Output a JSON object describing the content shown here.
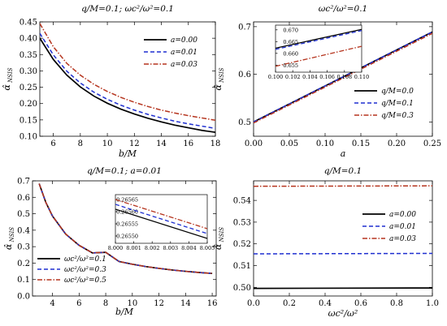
{
  "colors": {
    "black": "#000000",
    "blue": "#1f2fd0",
    "red": "#b5341e"
  },
  "chart_data": [
    {
      "type": "line",
      "title": "q/M=0.1;     ωc²/ω²=0.1",
      "xlabel": "b/M",
      "ylabel": "α̂ NSIS",
      "xlim": [
        5,
        18
      ],
      "ylim": [
        0.1,
        0.45
      ],
      "xticks": [
        6,
        8,
        10,
        12,
        14,
        16,
        18
      ],
      "yticks": [
        0.1,
        0.15,
        0.2,
        0.25,
        0.3,
        0.35,
        0.4,
        0.45
      ],
      "legend_position": "top-right",
      "series": [
        {
          "name": "a=0.00",
          "color": "#000000",
          "dash": "solid",
          "x": [
            5,
            6,
            7,
            8,
            9,
            10,
            11,
            12,
            13,
            14,
            15,
            16,
            17,
            18
          ],
          "values": [
            0.4,
            0.335,
            0.287,
            0.251,
            0.223,
            0.201,
            0.183,
            0.168,
            0.155,
            0.144,
            0.134,
            0.126,
            0.118,
            0.112
          ]
        },
        {
          "name": "a=0.01",
          "color": "#1f2fd0",
          "dash": "dashed",
          "x": [
            5,
            6,
            7,
            8,
            9,
            10,
            11,
            12,
            13,
            14,
            15,
            16,
            17,
            18
          ],
          "values": [
            0.415,
            0.349,
            0.299,
            0.263,
            0.235,
            0.213,
            0.195,
            0.18,
            0.167,
            0.156,
            0.146,
            0.138,
            0.131,
            0.124
          ]
        },
        {
          "name": "a=0.03",
          "color": "#b5341e",
          "dash": "dashdot",
          "x": [
            5,
            6,
            7,
            8,
            9,
            10,
            11,
            12,
            13,
            14,
            15,
            16,
            17,
            18
          ],
          "values": [
            0.445,
            0.374,
            0.323,
            0.287,
            0.259,
            0.237,
            0.219,
            0.204,
            0.191,
            0.18,
            0.171,
            0.163,
            0.156,
            0.149
          ]
        }
      ]
    },
    {
      "type": "line",
      "title": "ωc²/ω²=0.1",
      "xlabel": "a",
      "ylabel": "α̂ NSIS",
      "xlim": [
        0,
        0.25
      ],
      "ylim": [
        0.47,
        0.71
      ],
      "xticks": [
        0.0,
        0.05,
        0.1,
        0.15,
        0.2,
        0.25
      ],
      "yticks": [
        0.5,
        0.6,
        0.7
      ],
      "legend_position": "bottom-right",
      "series": [
        {
          "name": "q/M=0.0",
          "color": "#000000",
          "dash": "solid",
          "x": [
            0,
            0.25
          ],
          "values": [
            0.5,
            0.689
          ]
        },
        {
          "name": "q/M=0.1",
          "color": "#1f2fd0",
          "dash": "dashed",
          "x": [
            0,
            0.25
          ],
          "values": [
            0.5,
            0.689
          ]
        },
        {
          "name": "q/M=0.3",
          "color": "#b5341e",
          "dash": "dashdot",
          "x": [
            0,
            0.25
          ],
          "values": [
            0.498,
            0.686
          ]
        }
      ],
      "inset": {
        "xlim": [
          0.1,
          0.11
        ],
        "ylim": [
          0.652,
          0.672
        ],
        "xticks": [
          0.1,
          0.102,
          0.104,
          0.106,
          0.108,
          0.11
        ],
        "xtick_labels": [
          "0.100",
          "0.102",
          "0.104",
          "0.106",
          "0.108",
          "0.110"
        ],
        "yticks": [
          0.655,
          0.66,
          0.665,
          0.67
        ],
        "series": [
          {
            "name": "q/M=0.0",
            "x": [
              0.1,
              0.11
            ],
            "values": [
              0.6622,
              0.6702
            ]
          },
          {
            "name": "q/M=0.1",
            "x": [
              0.1,
              0.11
            ],
            "values": [
              0.6617,
              0.6697
            ]
          },
          {
            "name": "q/M=0.3",
            "x": [
              0.1,
              0.11
            ],
            "values": [
              0.6545,
              0.663
            ]
          }
        ]
      }
    },
    {
      "type": "line",
      "title": "q/M=0.1;   a=0.01",
      "xlabel": "b/M",
      "ylabel": "α̂ NSIS",
      "xlim": [
        2.5,
        16.3
      ],
      "ylim": [
        0.0,
        0.7
      ],
      "xticks": [
        4,
        6,
        8,
        10,
        12,
        14,
        16
      ],
      "yticks": [
        0.0,
        0.1,
        0.2,
        0.3,
        0.4,
        0.5,
        0.6,
        0.7
      ],
      "legend_position": "bottom-left",
      "series": [
        {
          "name": "ωc²/ω²=0.1",
          "color": "#000000",
          "dash": "solid",
          "x": [
            3,
            3.5,
            4,
            5,
            6,
            7,
            8,
            9,
            10,
            11,
            12,
            13,
            14,
            15,
            16
          ],
          "values": [
            0.683,
            0.569,
            0.486,
            0.376,
            0.308,
            0.262,
            0.2655,
            0.21,
            0.193,
            0.179,
            0.168,
            0.158,
            0.15,
            0.143,
            0.137
          ]
        },
        {
          "name": "ωc²/ω²=0.3",
          "color": "#1f2fd0",
          "dash": "dashed",
          "x": [
            3,
            3.5,
            4,
            5,
            6,
            7,
            8,
            9,
            10,
            11,
            12,
            13,
            14,
            15,
            16
          ],
          "values": [
            0.683,
            0.569,
            0.486,
            0.376,
            0.308,
            0.262,
            0.2656,
            0.21,
            0.193,
            0.179,
            0.168,
            0.158,
            0.15,
            0.143,
            0.137
          ]
        },
        {
          "name": "ωc²/ω²=0.5",
          "color": "#b5341e",
          "dash": "dashdot",
          "x": [
            3,
            3.5,
            4,
            5,
            6,
            7,
            8,
            9,
            10,
            11,
            12,
            13,
            14,
            15,
            16
          ],
          "values": [
            0.683,
            0.569,
            0.486,
            0.376,
            0.308,
            0.262,
            0.2657,
            0.21,
            0.193,
            0.179,
            0.168,
            0.158,
            0.15,
            0.143,
            0.137
          ]
        }
      ],
      "inset": {
        "xlim": [
          8.0,
          8.005
        ],
        "ylim": [
          0.26547,
          0.26567
        ],
        "xticks": [
          8.0,
          8.001,
          8.002,
          8.003,
          8.004,
          8.005
        ],
        "xtick_labels": [
          "8.000",
          "8.001",
          "8.002",
          "8.003",
          "8.004",
          "8.005"
        ],
        "yticks": [
          0.2655,
          0.26555,
          0.2656,
          0.26565
        ],
        "series": [
          {
            "name": "ωc²/ω²=0.1",
            "x": [
              8.0,
              8.005
            ],
            "values": [
              0.26561,
              0.26549
            ]
          },
          {
            "name": "ωc²/ω²=0.3",
            "x": [
              8.0,
              8.005
            ],
            "values": [
              0.26563,
              0.26551
            ]
          },
          {
            "name": "ωc²/ω²=0.5",
            "x": [
              8.0,
              8.005
            ],
            "values": [
              0.26565,
              0.26553
            ]
          }
        ]
      }
    },
    {
      "type": "line",
      "title": "q/M=0.1",
      "xlabel": "ωc²/ω²",
      "ylabel": "α̂ NSIS",
      "xlim": [
        0,
        1
      ],
      "ylim": [
        0.496,
        0.549
      ],
      "xticks": [
        0.0,
        0.2,
        0.4,
        0.6,
        0.8,
        1.0
      ],
      "yticks": [
        0.5,
        0.51,
        0.52,
        0.53,
        0.54
      ],
      "legend_position": "top-right",
      "series": [
        {
          "name": "a=0.00",
          "color": "#000000",
          "dash": "solid",
          "x": [
            0,
            1
          ],
          "values": [
            0.4995,
            0.4997
          ]
        },
        {
          "name": "a=0.01",
          "color": "#1f2fd0",
          "dash": "dashed",
          "x": [
            0,
            1
          ],
          "values": [
            0.5154,
            0.5156
          ]
        },
        {
          "name": "a=0.03",
          "color": "#b5341e",
          "dash": "dashdot",
          "x": [
            0,
            1
          ],
          "values": [
            0.5465,
            0.5467
          ]
        }
      ]
    }
  ]
}
